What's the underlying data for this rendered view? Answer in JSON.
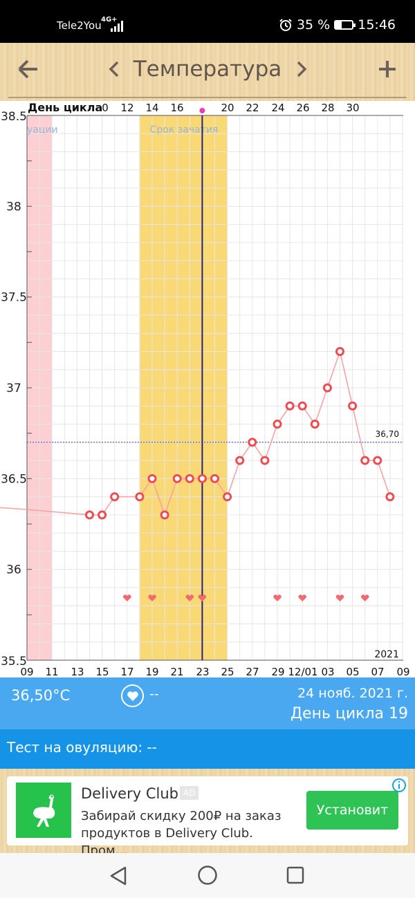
{
  "status_bar": {
    "carrier": "Tele2You",
    "network": "4G+",
    "battery_percent": "35 %",
    "battery_level": 0.35,
    "time": "15:46"
  },
  "toolbar": {
    "title": "Температура"
  },
  "chart": {
    "top_axis_label": "День цикла",
    "top_axis_ticks": [
      "0",
      "12",
      "14",
      "16",
      "20",
      "22",
      "24",
      "26",
      "28",
      "30"
    ],
    "bottom_axis_ticks": [
      "09",
      "11",
      "13",
      "15",
      "17",
      "19",
      "21",
      "23",
      "25",
      "27",
      "29",
      "12/01",
      "03",
      "05",
      "07",
      "09"
    ],
    "y_ticks": [
      "38.5",
      "38",
      "37.5",
      "37",
      "36.5",
      "36",
      "35.5"
    ],
    "menstruation_label": "уации",
    "fertile_label": "Срок зачатия",
    "coverline_label": "36,70",
    "year_label": "2021"
  },
  "chart_data": {
    "type": "line",
    "xlabel": "День цикла",
    "ylim": [
      35.5,
      38.5
    ],
    "coverline": 36.7,
    "x_dates": [
      "11-09",
      "11-14",
      "11-15",
      "11-16",
      "11-18",
      "11-19",
      "11-20",
      "11-21",
      "11-22",
      "11-23",
      "11-24",
      "11-25",
      "11-26",
      "11-27",
      "11-28",
      "11-29",
      "11-30",
      "12-01",
      "12-02",
      "12-03",
      "12-04",
      "12-05",
      "12-06",
      "12-07",
      "12-08"
    ],
    "values": [
      36.33,
      36.3,
      36.3,
      36.4,
      36.4,
      36.5,
      36.3,
      36.5,
      36.5,
      36.5,
      36.5,
      36.4,
      36.6,
      36.7,
      36.6,
      36.8,
      36.9,
      36.9,
      36.8,
      37.0,
      37.2,
      36.9,
      36.6,
      36.6,
      36.4
    ],
    "heart_dates": [
      "11-17",
      "11-19",
      "11-22",
      "11-23",
      "11-29",
      "12-01",
      "12-04",
      "12-06"
    ],
    "selected_date": "11-23",
    "menstruation_dates": [
      "11-09",
      "11-10"
    ],
    "fertile_window": [
      "11-18",
      "11-24"
    ]
  },
  "info": {
    "temperature": "36,50°C",
    "intercourse": "--",
    "date": "24 нояб. 2021 г.",
    "cycle_day": "День цикла 19"
  },
  "ovulation": {
    "text": "Тест на овуляцию: --"
  },
  "ad": {
    "title": "Delivery Club",
    "badge": "AD",
    "body": "Забирай скидку 200₽ на заказ продуктов в Delivery Club. Пром…",
    "button": "Установит"
  }
}
